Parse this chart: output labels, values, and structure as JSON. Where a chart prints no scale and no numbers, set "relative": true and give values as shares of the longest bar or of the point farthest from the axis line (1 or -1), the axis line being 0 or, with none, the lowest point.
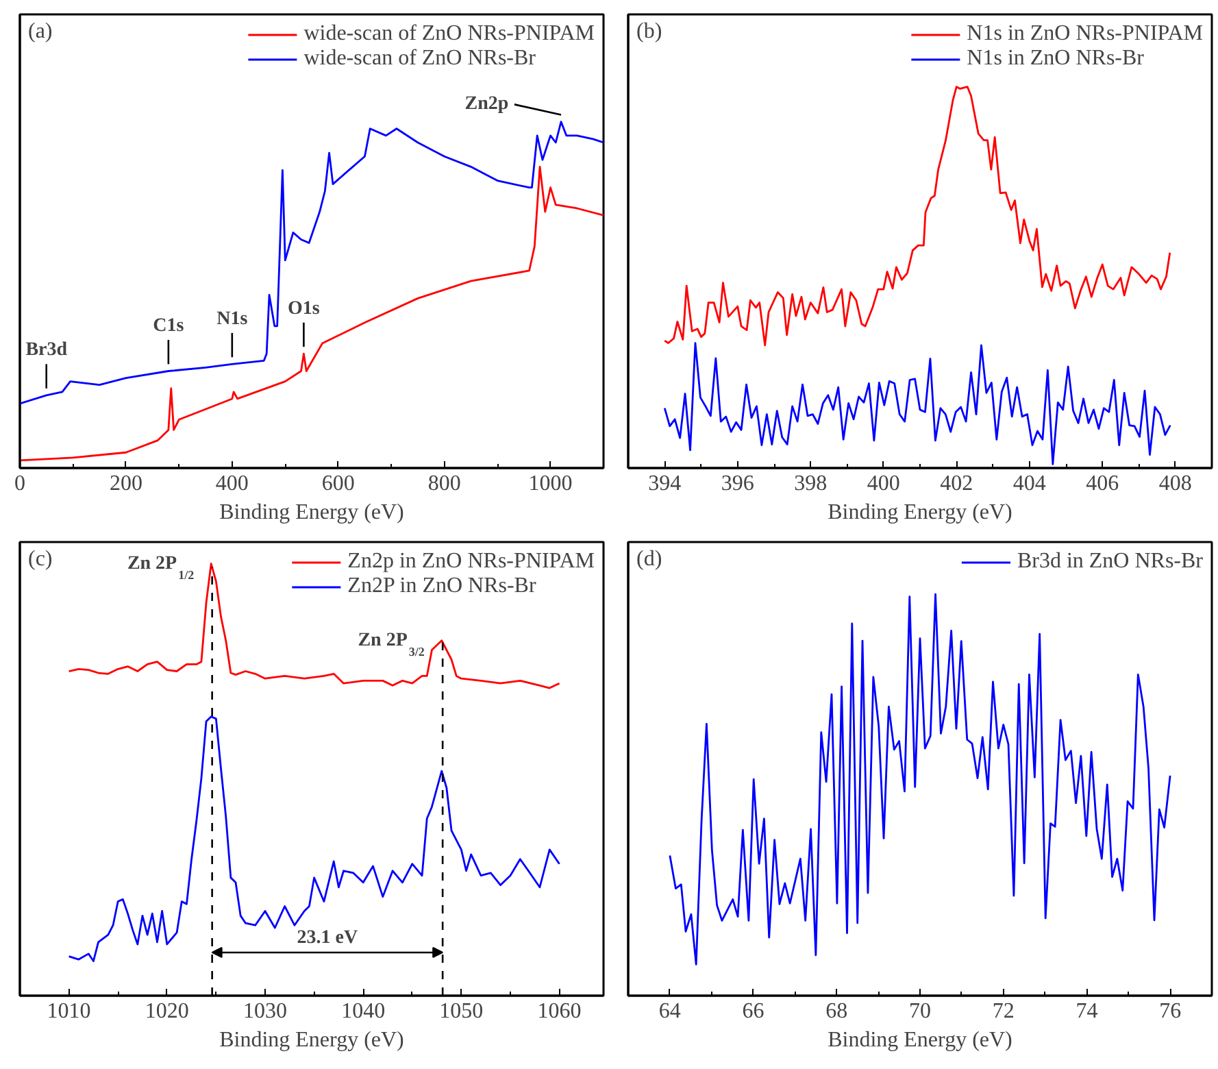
{
  "chart_data": [
    {
      "type": "line",
      "title": "(a)",
      "xlabel": "Binding Energy (eV)",
      "relative": true,
      "xlim": [
        0,
        1100
      ],
      "xticks": [
        0,
        200,
        400,
        600,
        800,
        1000
      ],
      "tick_labels": "x",
      "legend": "top right",
      "annotations": [
        {
          "text": "Br3d",
          "x": 50,
          "y": 0.21
        },
        {
          "text": "C1s",
          "x": 280,
          "y": 0.28
        },
        {
          "text": "N1s",
          "x": 400,
          "y": 0.3
        },
        {
          "text": "O1s",
          "x": 535,
          "y": 0.33
        },
        {
          "text": "Zn2p",
          "x": 1020,
          "y": 1.0
        }
      ],
      "series": [
        {
          "name": "wide-scan of ZnO NRs-PNIPAM",
          "color": "#ff0000",
          "x": [
            0,
            100,
            200,
            260,
            280,
            285,
            290,
            300,
            400,
            403,
            410,
            500,
            530,
            535,
            540,
            570,
            650,
            750,
            850,
            960,
            970,
            980,
            990,
            1000,
            1010,
            1050,
            1100
          ],
          "values": [
            0.022,
            0.03,
            0.045,
            0.08,
            0.11,
            0.23,
            0.11,
            0.14,
            0.2,
            0.22,
            0.2,
            0.25,
            0.28,
            0.33,
            0.28,
            0.36,
            0.42,
            0.49,
            0.54,
            0.57,
            0.64,
            0.87,
            0.74,
            0.81,
            0.76,
            0.75,
            0.73
          ]
        },
        {
          "name": "wide-scan of ZnO NRs-Br",
          "color": "#0000ff",
          "x": [
            0,
            50,
            80,
            95,
            150,
            200,
            280,
            350,
            400,
            460,
            465,
            470,
            480,
            485,
            495,
            500,
            515,
            530,
            545,
            565,
            575,
            583,
            590,
            620,
            650,
            660,
            690,
            710,
            750,
            800,
            850,
            900,
            960,
            965,
            975,
            985,
            1000,
            1010,
            1020,
            1030,
            1050,
            1080,
            1100
          ],
          "values": [
            0.186,
            0.21,
            0.22,
            0.25,
            0.24,
            0.26,
            0.28,
            0.29,
            0.3,
            0.31,
            0.33,
            0.5,
            0.41,
            0.41,
            0.86,
            0.6,
            0.68,
            0.66,
            0.65,
            0.74,
            0.8,
            0.91,
            0.82,
            0.86,
            0.9,
            0.98,
            0.96,
            0.98,
            0.94,
            0.9,
            0.87,
            0.83,
            0.81,
            0.81,
            0.96,
            0.89,
            0.96,
            0.94,
            1.0,
            0.96,
            0.96,
            0.95,
            0.94
          ]
        }
      ]
    },
    {
      "type": "line",
      "title": "(b)",
      "xlabel": "Binding Energy (eV)",
      "relative": true,
      "xlim": [
        393,
        409
      ],
      "xticks": [
        394,
        396,
        398,
        400,
        402,
        404,
        406,
        408
      ],
      "tick_labels": "x",
      "legend": "top right",
      "series": [
        {
          "name": "N1s in ZnO NRs-PNIPAM",
          "color": "#ff0000",
          "x": [
            394.0,
            394.1,
            394.25,
            394.35,
            394.5,
            394.6,
            394.75,
            394.9,
            395.0,
            395.1,
            395.2,
            395.35,
            395.5,
            395.6,
            395.75,
            396.0,
            396.1,
            396.25,
            396.35,
            396.5,
            396.6,
            396.75,
            396.85,
            397.1,
            397.25,
            397.35,
            397.5,
            397.6,
            397.75,
            397.85,
            398.0,
            398.2,
            398.35,
            398.45,
            398.6,
            398.85,
            398.95,
            399.1,
            399.25,
            399.4,
            399.5,
            399.7,
            399.85,
            400.0,
            400.1,
            400.25,
            400.35,
            400.5,
            400.65,
            400.8,
            400.95,
            401.1,
            401.15,
            401.3,
            401.4,
            401.5,
            401.7,
            401.9,
            402.0,
            402.1,
            402.3,
            402.4,
            402.6,
            402.75,
            402.85,
            402.95,
            403.05,
            403.2,
            403.35,
            403.5,
            403.6,
            403.75,
            403.85,
            404.0,
            404.1,
            404.2,
            404.35,
            404.45,
            404.6,
            404.75,
            404.85,
            405.0,
            405.1,
            405.25,
            405.4,
            405.55,
            405.7,
            405.85,
            406.0,
            406.15,
            406.3,
            406.5,
            406.6,
            406.8,
            407.0,
            407.2,
            407.35,
            407.5,
            407.6,
            407.75,
            407.85
          ],
          "values": [
            0.334,
            0.328,
            0.34,
            0.384,
            0.337,
            0.478,
            0.359,
            0.365,
            0.344,
            0.353,
            0.434,
            0.434,
            0.382,
            0.486,
            0.397,
            0.424,
            0.372,
            0.362,
            0.44,
            0.421,
            0.434,
            0.322,
            0.409,
            0.461,
            0.446,
            0.349,
            0.456,
            0.399,
            0.449,
            0.39,
            0.434,
            0.406,
            0.474,
            0.409,
            0.415,
            0.469,
            0.372,
            0.461,
            0.44,
            0.378,
            0.372,
            0.421,
            0.469,
            0.469,
            0.515,
            0.471,
            0.527,
            0.494,
            0.511,
            0.571,
            0.584,
            0.584,
            0.671,
            0.708,
            0.714,
            0.783,
            0.858,
            0.964,
            1.0,
            0.995,
            1.0,
            0.976,
            0.877,
            0.86,
            0.86,
            0.783,
            0.868,
            0.721,
            0.723,
            0.677,
            0.702,
            0.59,
            0.652,
            0.596,
            0.571,
            0.627,
            0.475,
            0.509,
            0.465,
            0.531,
            0.478,
            0.49,
            0.484,
            0.419,
            0.465,
            0.502,
            0.449,
            0.496,
            0.534,
            0.478,
            0.469,
            0.499,
            0.453,
            0.527,
            0.509,
            0.486,
            0.505,
            0.496,
            0.469,
            0.502,
            0.565
          ]
        },
        {
          "name": "N1s in ZnO NRs-Br",
          "color": "#0000ff",
          "x": [
            394.0,
            394.14,
            394.28,
            394.42,
            394.56,
            394.7,
            394.84,
            394.98,
            395.12,
            395.26,
            395.4,
            395.54,
            395.68,
            395.82,
            395.96,
            396.1,
            396.24,
            396.38,
            396.52,
            396.66,
            396.8,
            396.94,
            397.08,
            397.22,
            397.36,
            397.5,
            397.64,
            397.78,
            397.92,
            398.06,
            398.2,
            398.34,
            398.48,
            398.62,
            398.76,
            398.9,
            399.04,
            399.18,
            399.32,
            399.46,
            399.6,
            399.74,
            399.88,
            400.02,
            400.16,
            400.3,
            400.44,
            400.58,
            400.72,
            400.86,
            401.0,
            401.14,
            401.28,
            401.42,
            401.56,
            401.7,
            401.84,
            401.98,
            402.12,
            402.26,
            402.4,
            402.54,
            402.68,
            402.82,
            402.96,
            403.1,
            403.24,
            403.38,
            403.52,
            403.66,
            403.8,
            403.94,
            404.08,
            404.22,
            404.36,
            404.5,
            404.64,
            404.78,
            404.92,
            405.06,
            405.2,
            405.34,
            405.48,
            405.62,
            405.76,
            405.9,
            406.04,
            406.18,
            406.32,
            406.46,
            406.6,
            406.74,
            406.88,
            407.02,
            407.16,
            407.3,
            407.44,
            407.58,
            407.72,
            407.86
          ],
          "values": [
            0.157,
            0.11,
            0.128,
            0.079,
            0.195,
            0.047,
            0.328,
            0.185,
            0.162,
            0.137,
            0.288,
            0.122,
            0.135,
            0.095,
            0.12,
            0.1,
            0.219,
            0.132,
            0.162,
            0.06,
            0.141,
            0.062,
            0.15,
            0.081,
            0.062,
            0.162,
            0.122,
            0.219,
            0.137,
            0.141,
            0.116,
            0.17,
            0.191,
            0.153,
            0.212,
            0.075,
            0.17,
            0.128,
            0.187,
            0.172,
            0.222,
            0.072,
            0.224,
            0.165,
            0.228,
            0.222,
            0.141,
            0.122,
            0.231,
            0.234,
            0.153,
            0.147,
            0.287,
            0.072,
            0.157,
            0.141,
            0.095,
            0.147,
            0.16,
            0.122,
            0.251,
            0.141,
            0.322,
            0.197,
            0.224,
            0.075,
            0.2,
            0.237,
            0.135,
            0.212,
            0.135,
            0.141,
            0.06,
            0.097,
            0.075,
            0.257,
            0.01,
            0.172,
            0.153,
            0.266,
            0.15,
            0.118,
            0.182,
            0.118,
            0.153,
            0.103,
            0.157,
            0.147,
            0.231,
            0.06,
            0.197,
            0.112,
            0.11,
            0.082,
            0.203,
            0.035,
            0.16,
            0.141,
            0.087,
            0.112
          ]
        }
      ]
    },
    {
      "type": "line",
      "title": "(c)",
      "xlabel": "Binding Energy (eV)",
      "relative": true,
      "xlim": [
        1005,
        1064.5
      ],
      "xticks": [
        1010,
        1020,
        1030,
        1040,
        1050,
        1060
      ],
      "tick_labels": "x",
      "legend": "top right",
      "annotations": [
        {
          "text": "Zn 2P$_{1/2}$",
          "x": 1024.5,
          "y": 1.0
        },
        {
          "text": "Zn 2P$_{3/2}$",
          "x": 1048,
          "y": 0.822
        },
        "23.1 eV"
      ],
      "ref_lines": [
        {
          "axis": "x",
          "value": 1024.6,
          "line_style": "dashed",
          "color": "#000000"
        },
        {
          "axis": "x",
          "value": 1048.1,
          "line_style": "dashed",
          "color": "#000000"
        }
      ],
      "series": [
        {
          "name": "Zn2p in ZnO NRs-PNIPAM",
          "color": "#ff0000",
          "x": [
            1010,
            1011,
            1012,
            1013,
            1014,
            1015,
            1016,
            1017,
            1018,
            1019,
            1020,
            1021,
            1022,
            1023,
            1023.5,
            1024,
            1024.5,
            1025,
            1025.5,
            1026,
            1026.5,
            1027,
            1028,
            1029,
            1030,
            1032,
            1034,
            1036,
            1037,
            1038,
            1040,
            1042,
            1043,
            1044,
            1045,
            1046,
            1046.5,
            1047,
            1048,
            1049,
            1049.5,
            1050,
            1052,
            1054,
            1056,
            1058,
            1059,
            1060
          ],
          "values": [
            0.751,
            0.756,
            0.754,
            0.747,
            0.745,
            0.756,
            0.762,
            0.751,
            0.767,
            0.773,
            0.754,
            0.751,
            0.767,
            0.767,
            0.773,
            0.91,
            1.0,
            0.959,
            0.877,
            0.822,
            0.747,
            0.743,
            0.751,
            0.745,
            0.734,
            0.74,
            0.734,
            0.74,
            0.745,
            0.723,
            0.729,
            0.729,
            0.718,
            0.729,
            0.723,
            0.74,
            0.74,
            0.8,
            0.822,
            0.778,
            0.74,
            0.734,
            0.729,
            0.723,
            0.729,
            0.718,
            0.712,
            0.723
          ]
        },
        {
          "name": "Zn2P in ZnO NRs-Br",
          "color": "#0000ff",
          "x": [
            1010,
            1011,
            1012,
            1012.5,
            1013,
            1014,
            1014.5,
            1015,
            1015.5,
            1016,
            1016.5,
            1017,
            1017.5,
            1018,
            1018.5,
            1019,
            1019.5,
            1020,
            1021,
            1021.5,
            1022,
            1022.5,
            1023,
            1023.5,
            1024,
            1024.5,
            1025,
            1025.5,
            1026,
            1026.5,
            1027,
            1027.5,
            1028,
            1029,
            1030,
            1031,
            1032,
            1033,
            1034,
            1034.5,
            1035,
            1036,
            1037,
            1037.5,
            1038,
            1039,
            1040,
            1041,
            1042,
            1043,
            1044,
            1045,
            1046,
            1046.5,
            1047,
            1048,
            1048.5,
            1049,
            1050,
            1050.5,
            1051,
            1052,
            1053,
            1054,
            1055,
            1056,
            1057,
            1058,
            1059,
            1060
          ],
          "values": [
            0.091,
            0.084,
            0.097,
            0.08,
            0.124,
            0.141,
            0.163,
            0.218,
            0.223,
            0.19,
            0.152,
            0.119,
            0.185,
            0.141,
            0.19,
            0.124,
            0.196,
            0.119,
            0.146,
            0.218,
            0.212,
            0.316,
            0.404,
            0.503,
            0.635,
            0.646,
            0.641,
            0.525,
            0.415,
            0.273,
            0.262,
            0.185,
            0.168,
            0.163,
            0.196,
            0.157,
            0.207,
            0.163,
            0.196,
            0.207,
            0.273,
            0.218,
            0.311,
            0.251,
            0.289,
            0.284,
            0.262,
            0.3,
            0.229,
            0.289,
            0.262,
            0.305,
            0.278,
            0.41,
            0.437,
            0.52,
            0.481,
            0.382,
            0.338,
            0.289,
            0.327,
            0.278,
            0.284,
            0.256,
            0.278,
            0.316,
            0.284,
            0.251,
            0.338,
            0.305
          ]
        }
      ]
    },
    {
      "type": "line",
      "title": "(d)",
      "xlabel": "Binding Energy (eV)",
      "relative": true,
      "xlim": [
        63,
        77
      ],
      "xticks": [
        64,
        66,
        68,
        70,
        72,
        74,
        76
      ],
      "tick_labels": "x",
      "legend": "top right",
      "series": [
        {
          "name": "Br3d in ZnO NRs-Br",
          "color": "#0000ff",
          "x": [
            64.0,
            64.14,
            64.27,
            64.38,
            64.51,
            64.63,
            64.76,
            64.88,
            65.01,
            65.13,
            65.25,
            65.51,
            65.63,
            65.75,
            65.89,
            66.01,
            66.14,
            66.26,
            66.38,
            66.51,
            66.63,
            66.76,
            66.88,
            67.13,
            67.25,
            67.38,
            67.5,
            67.63,
            67.75,
            67.88,
            68.01,
            68.12,
            68.25,
            68.37,
            68.5,
            68.62,
            68.75,
            68.88,
            69.01,
            69.13,
            69.25,
            69.38,
            69.5,
            69.63,
            69.75,
            69.88,
            70.0,
            70.12,
            70.25,
            70.37,
            70.5,
            70.62,
            70.75,
            70.87,
            70.99,
            71.13,
            71.25,
            71.38,
            71.5,
            71.63,
            71.75,
            71.88,
            72.0,
            72.12,
            72.25,
            72.37,
            72.5,
            72.62,
            72.75,
            72.87,
            73.01,
            73.13,
            73.24,
            73.37,
            73.49,
            73.62,
            73.74,
            73.86,
            73.99,
            74.11,
            74.24,
            74.36,
            74.49,
            74.61,
            74.73,
            74.86,
            74.98,
            75.11,
            75.23,
            75.36,
            75.48,
            75.62,
            75.74,
            75.86,
            76.0
          ],
          "values": [
            0.349,
            0.267,
            0.277,
            0.16,
            0.203,
            0.078,
            0.437,
            0.677,
            0.363,
            0.225,
            0.187,
            0.24,
            0.197,
            0.413,
            0.187,
            0.539,
            0.329,
            0.441,
            0.145,
            0.388,
            0.228,
            0.28,
            0.23,
            0.341,
            0.187,
            0.415,
            0.101,
            0.656,
            0.533,
            0.751,
            0.23,
            0.77,
            0.156,
            0.927,
            0.181,
            0.884,
            0.256,
            0.794,
            0.671,
            0.392,
            0.72,
            0.613,
            0.634,
            0.509,
            0.994,
            0.52,
            0.89,
            0.616,
            0.647,
            1.0,
            0.653,
            0.72,
            0.909,
            0.665,
            0.883,
            0.638,
            0.628,
            0.542,
            0.644,
            0.514,
            0.782,
            0.616,
            0.675,
            0.626,
            0.249,
            0.776,
            0.33,
            0.8,
            0.544,
            0.901,
            0.193,
            0.429,
            0.421,
            0.687,
            0.587,
            0.61,
            0.48,
            0.597,
            0.398,
            0.607,
            0.415,
            0.341,
            0.526,
            0.296,
            0.341,
            0.262,
            0.484,
            0.466,
            0.8,
            0.72,
            0.567,
            0.188,
            0.464,
            0.419,
            0.548
          ]
        }
      ]
    }
  ]
}
